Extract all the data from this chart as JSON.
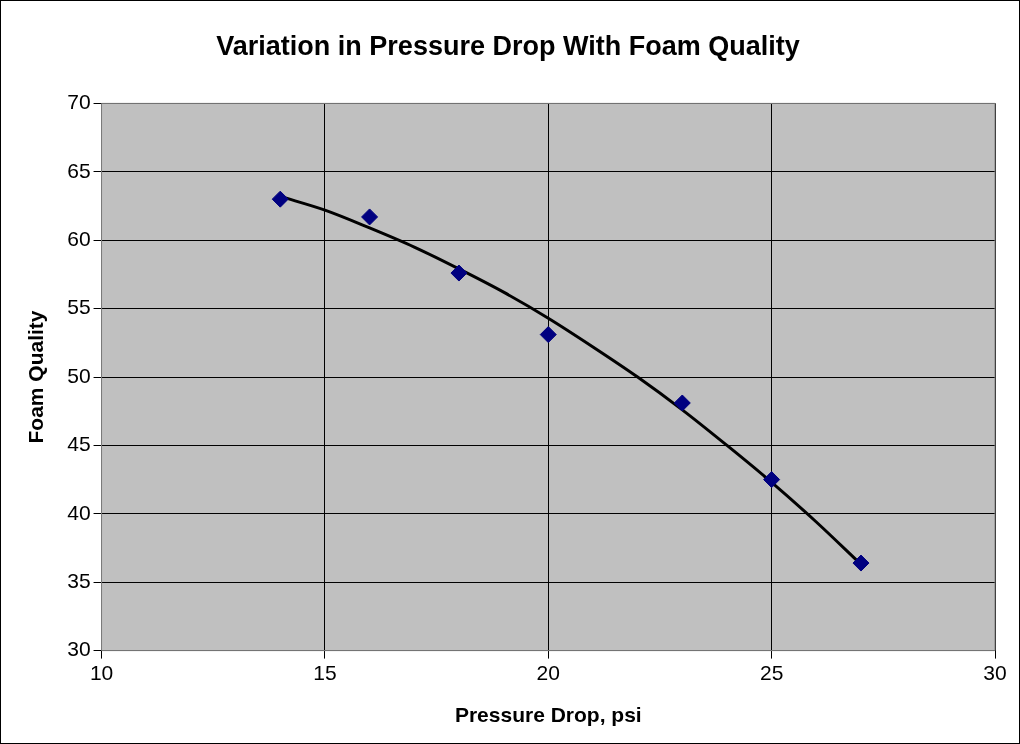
{
  "chart_data": {
    "type": "scatter",
    "title": "Variation in Pressure Drop With Foam Quality",
    "xlabel": "Pressure Drop, psi",
    "ylabel": "Foam Quality",
    "xlim": [
      10,
      30
    ],
    "xticks": [
      10,
      15,
      20,
      25,
      30
    ],
    "ylim": [
      30,
      70
    ],
    "yticks": [
      30,
      35,
      40,
      45,
      50,
      55,
      60,
      65,
      70
    ],
    "grid": true,
    "legend": false,
    "x": [
      14,
      16,
      18,
      20,
      23,
      25,
      27
    ],
    "series": [
      {
        "type": "scatter",
        "color": "#000080",
        "marker": "diamond",
        "values": [
          63.0,
          61.7,
          57.6,
          53.1,
          48.1,
          42.5,
          36.4
        ]
      },
      {
        "type": "line",
        "color": "#000000",
        "marker": "none",
        "line_style": "solid",
        "x": [
          14,
          15,
          16,
          17,
          18,
          19,
          20,
          21,
          22,
          23,
          24,
          25,
          26,
          27
        ],
        "values": [
          63.2,
          62.2,
          60.9,
          59.5,
          57.9,
          56.2,
          54.3,
          52.2,
          50.0,
          47.6,
          45.0,
          42.3,
          39.4,
          36.3
        ]
      }
    ]
  }
}
